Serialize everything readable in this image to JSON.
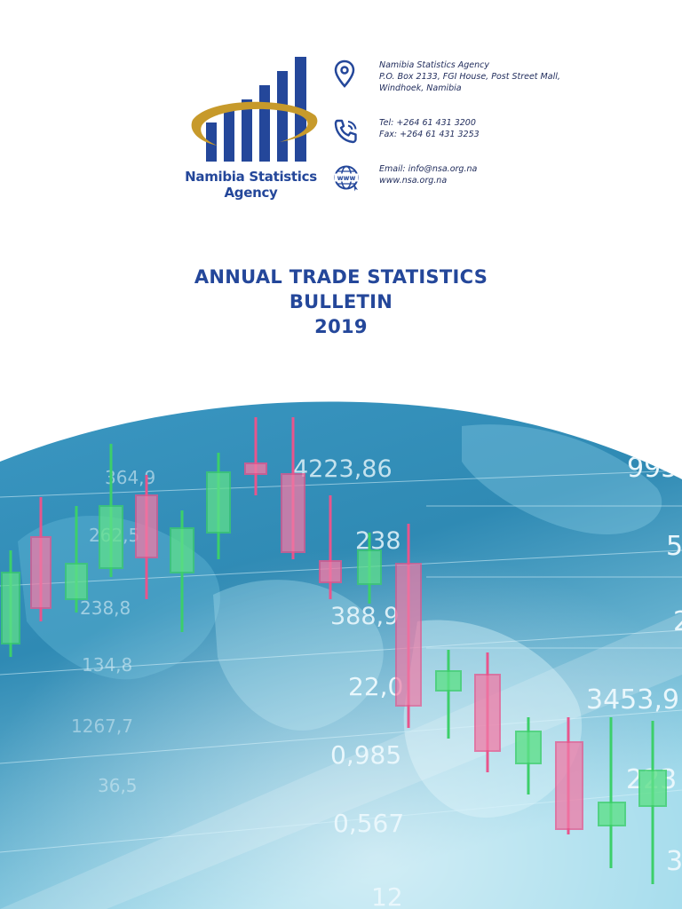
{
  "agency": {
    "name_line1": "Namibia Statistics",
    "name_line2": "Agency"
  },
  "contact": {
    "address": [
      "Namibia Statistics Agency",
      "P.O. Box 2133, FGI House, Post Street Mall,",
      "Windhoek, Namibia"
    ],
    "phone": [
      "Tel: +264 61 431 3200",
      "Fax: +264 61 431 3253"
    ],
    "web": [
      "Email: info@nsa.org.na",
      "www.nsa.org.na"
    ],
    "icons": [
      "location-pin-icon",
      "phone-icon",
      "globe-www-icon"
    ],
    "globe_label": "www"
  },
  "title": {
    "line1": "ANNUAL TRADE STATISTICS",
    "line2": "BULLETIN",
    "line3": "2019"
  },
  "cover_numbers": [
    "4223,86",
    "238",
    "388,9",
    "22,0",
    "0,985",
    "0,567",
    "12",
    "3453,9",
    "223",
    "995",
    "364,9",
    "262,5",
    "238,8",
    "134,8",
    "1267,7",
    "36,5",
    "5",
    "2",
    "3"
  ],
  "colors": {
    "brand_blue": "#24479a",
    "gold": "#c79a2b",
    "candle_up": "#3ccf6a",
    "candle_down": "#e8558c"
  }
}
